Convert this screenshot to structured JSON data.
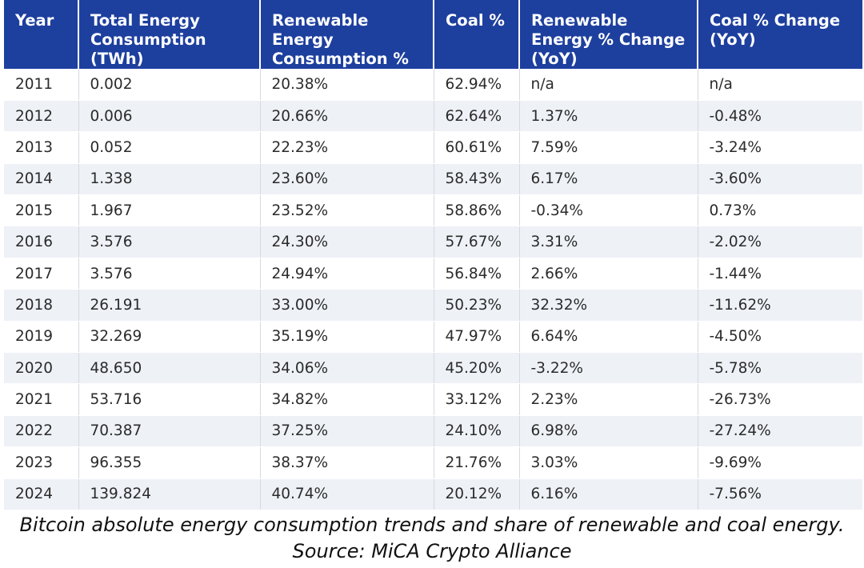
{
  "chart_data": {
    "type": "table",
    "columns": [
      "Year",
      "Total Energy Consumption (TWh)",
      "Renewable Energy Consumption %",
      "Coal %",
      "Renewable Energy % Change (YoY)",
      "Coal % Change (YoY)"
    ],
    "rows": [
      [
        "2011",
        "0.002",
        "20.38%",
        "62.94%",
        "n/a",
        "n/a"
      ],
      [
        "2012",
        "0.006",
        "20.66%",
        "62.64%",
        "1.37%",
        "-0.48%"
      ],
      [
        "2013",
        "0.052",
        "22.23%",
        "60.61%",
        "7.59%",
        "-3.24%"
      ],
      [
        "2014",
        "1.338",
        "23.60%",
        "58.43%",
        "6.17%",
        "-3.60%"
      ],
      [
        "2015",
        "1.967",
        "23.52%",
        "58.86%",
        "-0.34%",
        "0.73%"
      ],
      [
        "2016",
        "3.576",
        "24.30%",
        "57.67%",
        "3.31%",
        "-2.02%"
      ],
      [
        "2017",
        "3.576",
        "24.94%",
        "56.84%",
        "2.66%",
        "-1.44%"
      ],
      [
        "2018",
        "26.191",
        "33.00%",
        "50.23%",
        "32.32%",
        "-11.62%"
      ],
      [
        "2019",
        "32.269",
        "35.19%",
        "47.97%",
        "6.64%",
        "-4.50%"
      ],
      [
        "2020",
        "48.650",
        "34.06%",
        "45.20%",
        "-3.22%",
        "-5.78%"
      ],
      [
        "2021",
        "53.716",
        "34.82%",
        "33.12%",
        "2.23%",
        "-26.73%"
      ],
      [
        "2022",
        "70.387",
        "37.25%",
        "24.10%",
        "6.98%",
        "-27.24%"
      ],
      [
        "2023",
        "96.355",
        "38.37%",
        "21.76%",
        "3.03%",
        "-9.69%"
      ],
      [
        "2024",
        "139.824",
        "40.74%",
        "20.12%",
        "6.16%",
        "-7.56%"
      ]
    ]
  },
  "caption": {
    "line1": "Bitcoin absolute energy consumption trends and share of renewable and coal energy.",
    "line2": "Source: MiCA Crypto Alliance"
  },
  "colors": {
    "header_bg": "#1d3f9e",
    "stripe_bg": "#eef1f6"
  }
}
